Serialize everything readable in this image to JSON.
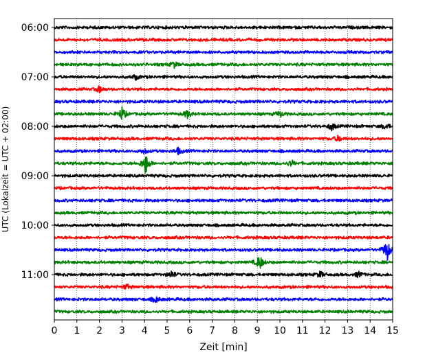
{
  "chart_data": {
    "type": "line",
    "title": "",
    "xlabel": "Zeit  [min]",
    "ylabel": "UTC (Lokalzeit = UTC + 02:00)",
    "xlim": [
      0,
      15
    ],
    "x_ticks": [
      0,
      1,
      2,
      3,
      4,
      5,
      6,
      7,
      8,
      9,
      10,
      11,
      12,
      13,
      14,
      15
    ],
    "y_tick_labels": [
      "06:00",
      "07:00",
      "08:00",
      "09:00",
      "10:00",
      "11:00"
    ],
    "trace_start": "06:00",
    "trace_interval_min": 15,
    "vertical_grid": true,
    "grid_style": "dotted",
    "series_colors": [
      "#000000",
      "#ff0000",
      "#0000ff",
      "#008000"
    ],
    "traces": [
      {
        "start": "06:00",
        "color": "#000000"
      },
      {
        "start": "06:15",
        "color": "#ff0000"
      },
      {
        "start": "06:30",
        "color": "#0000ff"
      },
      {
        "start": "06:45",
        "color": "#008000",
        "events": [
          {
            "t": 5.3,
            "amp": 0.25
          }
        ]
      },
      {
        "start": "07:00",
        "color": "#000000",
        "events": [
          {
            "t": 3.6,
            "amp": 0.2
          }
        ]
      },
      {
        "start": "07:15",
        "color": "#ff0000",
        "events": [
          {
            "t": 2.0,
            "amp": 0.25
          }
        ]
      },
      {
        "start": "07:30",
        "color": "#0000ff"
      },
      {
        "start": "07:45",
        "color": "#008000",
        "events": [
          {
            "t": 3.0,
            "amp": 0.55
          },
          {
            "t": 5.9,
            "amp": 0.3
          },
          {
            "t": 10.0,
            "amp": 0.25
          }
        ]
      },
      {
        "start": "08:00",
        "color": "#000000",
        "events": [
          {
            "t": 12.3,
            "amp": 0.3
          },
          {
            "t": 14.7,
            "amp": 0.25
          }
        ]
      },
      {
        "start": "08:15",
        "color": "#ff0000",
        "events": [
          {
            "t": 12.6,
            "amp": 0.25
          }
        ]
      },
      {
        "start": "08:30",
        "color": "#0000ff",
        "events": [
          {
            "t": 4.0,
            "amp": 0.2
          },
          {
            "t": 5.5,
            "amp": 0.25
          }
        ]
      },
      {
        "start": "08:45",
        "color": "#008000",
        "events": [
          {
            "t": 4.05,
            "amp": 0.9
          },
          {
            "t": 10.5,
            "amp": 0.25
          }
        ]
      },
      {
        "start": "09:00",
        "color": "#000000"
      },
      {
        "start": "09:15",
        "color": "#ff0000"
      },
      {
        "start": "09:30",
        "color": "#0000ff"
      },
      {
        "start": "09:45",
        "color": "#008000"
      },
      {
        "start": "10:00",
        "color": "#000000"
      },
      {
        "start": "10:15",
        "color": "#ff0000"
      },
      {
        "start": "10:30",
        "color": "#0000ff",
        "events": [
          {
            "t": 14.75,
            "amp": 0.9
          }
        ]
      },
      {
        "start": "10:45",
        "color": "#008000",
        "events": [
          {
            "t": 9.1,
            "amp": 0.6
          }
        ]
      },
      {
        "start": "11:00",
        "color": "#000000",
        "events": [
          {
            "t": 5.2,
            "amp": 0.3
          },
          {
            "t": 11.8,
            "amp": 0.25
          },
          {
            "t": 13.5,
            "amp": 0.25
          }
        ]
      },
      {
        "start": "11:15",
        "color": "#ff0000",
        "events": [
          {
            "t": 3.2,
            "amp": 0.2
          }
        ]
      },
      {
        "start": "11:30",
        "color": "#0000ff",
        "events": [
          {
            "t": 4.5,
            "amp": 0.25
          }
        ]
      },
      {
        "start": "11:45",
        "color": "#008000"
      }
    ]
  }
}
